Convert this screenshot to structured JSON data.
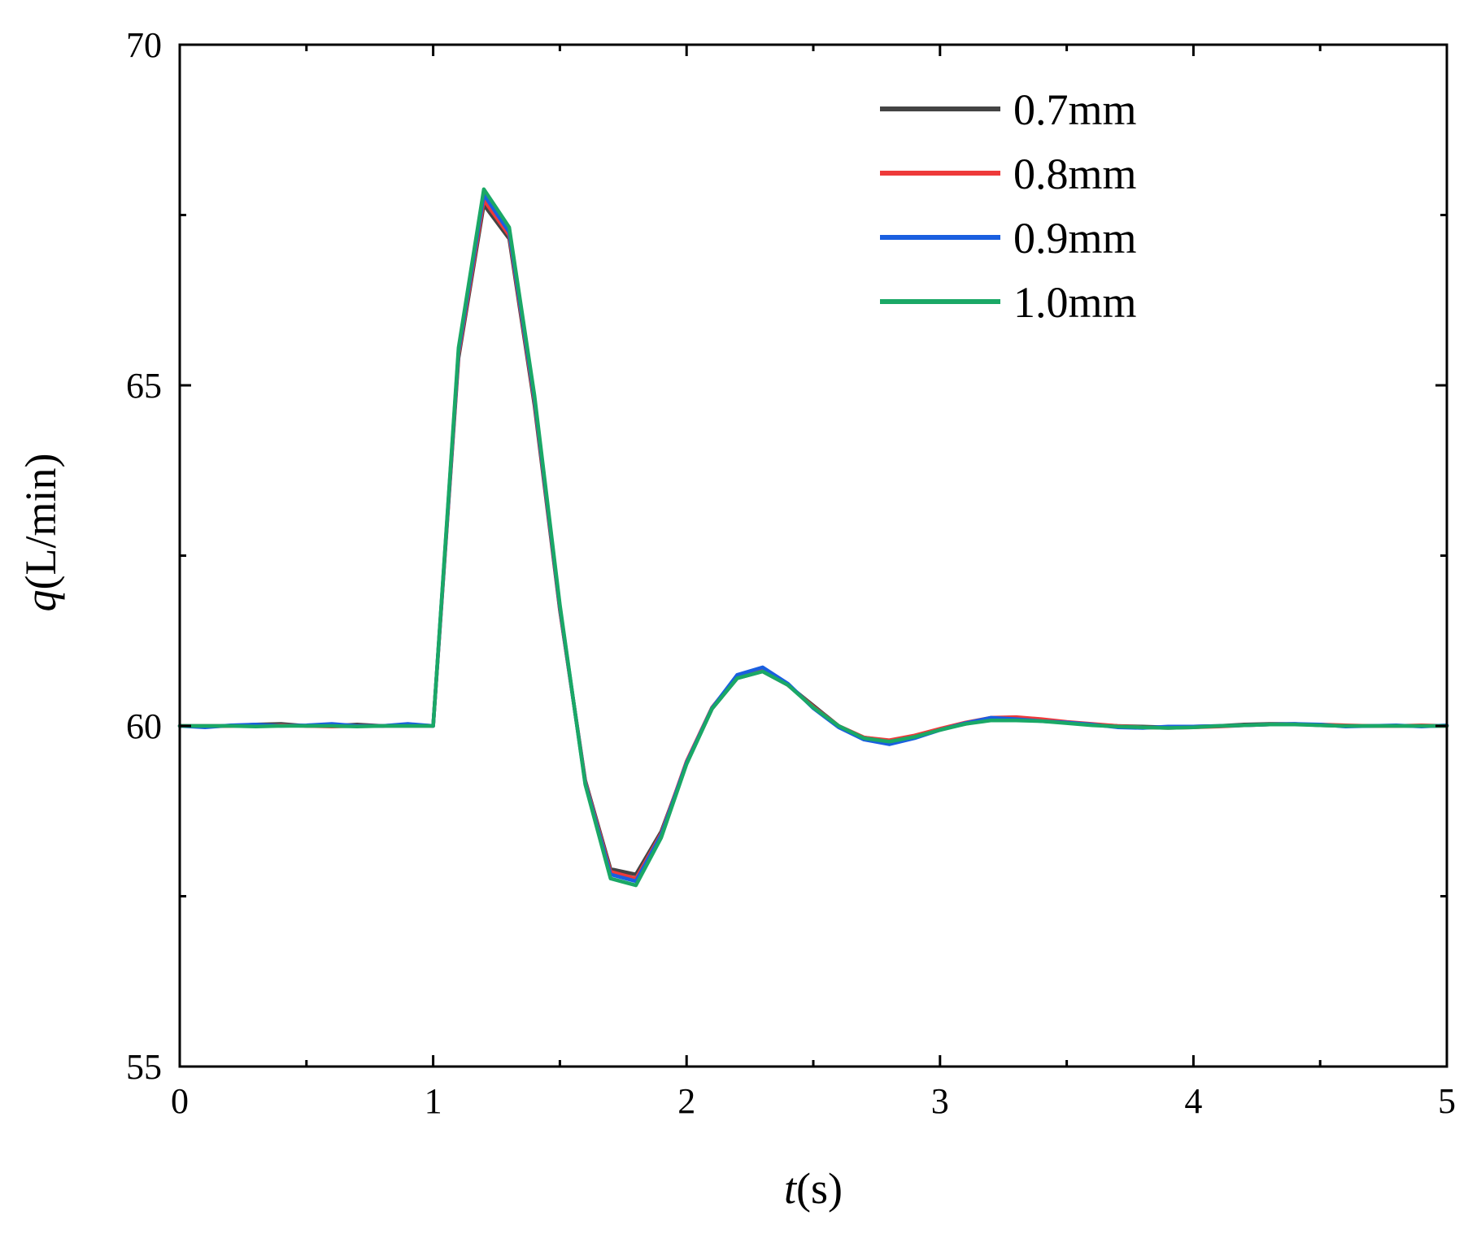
{
  "chart_data": {
    "type": "line",
    "title": "",
    "xlabel_var": "t",
    "xlabel_unit": "(s)",
    "ylabel_var": "q",
    "ylabel_unit": "(L/min)",
    "xlim": [
      0,
      5
    ],
    "ylim": [
      55,
      70
    ],
    "x_ticks": [
      0,
      1,
      2,
      3,
      4,
      5
    ],
    "x_tick_labels": [
      "0",
      "1",
      "2",
      "3",
      "4",
      "5"
    ],
    "x_minor_ticks": [
      0.5,
      1.5,
      2.5,
      3.5,
      4.5
    ],
    "y_ticks": [
      55,
      60,
      65,
      70
    ],
    "y_tick_labels": [
      "55",
      "60",
      "65",
      "70"
    ],
    "y_minor_ticks": [
      57.5,
      62.5,
      67.5
    ],
    "grid": false,
    "legend_position": "top-right",
    "x": [
      0,
      0.1,
      0.2,
      0.3,
      0.4,
      0.5,
      0.6,
      0.7,
      0.8,
      0.9,
      1.0,
      1.1,
      1.2,
      1.3,
      1.4,
      1.5,
      1.6,
      1.7,
      1.8,
      1.9,
      2.0,
      2.1,
      2.2,
      2.3,
      2.4,
      2.5,
      2.6,
      2.7,
      2.8,
      2.9,
      3.0,
      3.1,
      3.2,
      3.3,
      3.4,
      3.5,
      3.6,
      3.7,
      3.8,
      3.9,
      4.0,
      4.1,
      4.2,
      4.3,
      4.4,
      4.5,
      4.6,
      4.7,
      4.8,
      4.9,
      5.0
    ],
    "series": [
      {
        "name": "0.7mm",
        "color": "#444444",
        "values": [
          60.0,
          60.0,
          60.0,
          60.02,
          60.03,
          60.0,
          60.0,
          60.02,
          60.0,
          60.0,
          60.0,
          65.4,
          67.65,
          67.15,
          64.7,
          61.7,
          59.2,
          57.9,
          57.82,
          58.45,
          59.45,
          60.25,
          60.7,
          60.8,
          60.6,
          60.3,
          60.0,
          59.83,
          59.78,
          59.85,
          59.95,
          60.03,
          60.1,
          60.1,
          60.08,
          60.05,
          60.02,
          60.0,
          59.99,
          59.98,
          59.99,
          60.0,
          60.02,
          60.03,
          60.03,
          60.01,
          60.0,
          60.0,
          60.0,
          60.0,
          60.0
        ]
      },
      {
        "name": "0.8mm",
        "color": "#ee3a3a",
        "values": [
          60.0,
          59.99,
          60.0,
          60.0,
          60.01,
          60.0,
          59.99,
          60.0,
          60.0,
          60.02,
          60.0,
          65.45,
          67.72,
          67.2,
          64.75,
          61.72,
          59.18,
          57.86,
          57.76,
          58.42,
          59.48,
          60.27,
          60.73,
          60.82,
          60.6,
          60.28,
          60.0,
          59.83,
          59.79,
          59.86,
          59.96,
          60.05,
          60.12,
          60.13,
          60.1,
          60.06,
          60.03,
          60.0,
          59.98,
          59.97,
          59.98,
          59.99,
          60.01,
          60.02,
          60.02,
          60.02,
          60.01,
          60.0,
          60.0,
          60.01,
          60.0
        ]
      },
      {
        "name": "0.9mm",
        "color": "#1a5fe0",
        "values": [
          60.0,
          59.98,
          60.01,
          60.02,
          60.0,
          60.01,
          60.03,
          60.0,
          60.0,
          60.03,
          60.0,
          65.5,
          67.8,
          67.25,
          64.8,
          61.75,
          59.16,
          57.82,
          57.72,
          58.4,
          59.46,
          60.26,
          60.75,
          60.86,
          60.62,
          60.26,
          59.98,
          59.8,
          59.73,
          59.82,
          59.94,
          60.04,
          60.12,
          60.1,
          60.07,
          60.05,
          60.02,
          59.98,
          59.97,
          59.99,
          59.99,
          60.0,
          60.01,
          60.02,
          60.03,
          60.02,
          59.99,
          60.0,
          60.01,
          59.99,
          60.01
        ]
      },
      {
        "name": "1.0mm",
        "color": "#1aa866",
        "values": [
          60.0,
          60.0,
          60.0,
          59.99,
          60.0,
          60.0,
          60.0,
          59.99,
          60.0,
          60.0,
          60.0,
          65.55,
          67.88,
          67.32,
          64.85,
          61.78,
          59.14,
          57.76,
          57.66,
          58.36,
          59.44,
          60.25,
          60.7,
          60.8,
          60.6,
          60.27,
          60.0,
          59.82,
          59.77,
          59.84,
          59.94,
          60.03,
          60.08,
          60.08,
          60.07,
          60.04,
          60.01,
          59.99,
          59.98,
          59.97,
          59.98,
          60.0,
          60.01,
          60.02,
          60.02,
          60.01,
          60.0,
          60.0,
          60.0,
          60.0,
          60.0
        ]
      }
    ]
  }
}
